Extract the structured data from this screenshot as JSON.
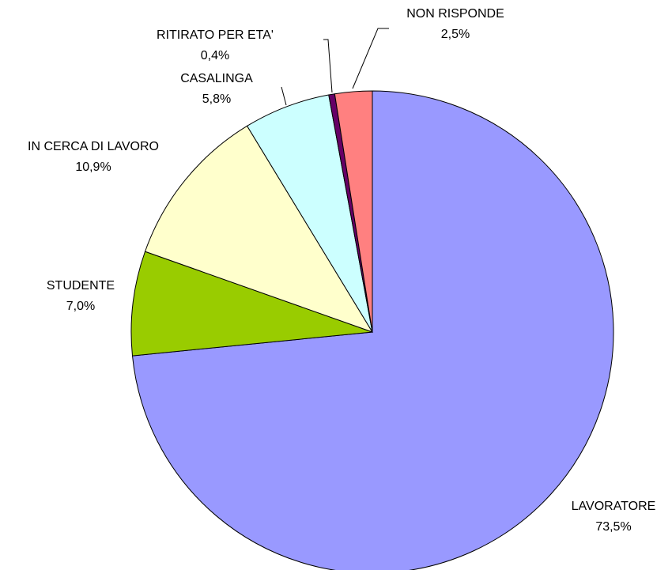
{
  "chart_data": {
    "type": "pie",
    "categories": [
      "LAVORATORE",
      "STUDENTE",
      "IN CERCA DI LAVORO",
      "CASALINGA",
      "RITIRATO PER ETA'",
      "NON RISPONDE"
    ],
    "values": [
      73.5,
      7.0,
      10.9,
      5.8,
      0.4,
      2.5
    ],
    "value_labels": [
      "73,5%",
      "7,0%",
      "10,9%",
      "5,8%",
      "0,4%",
      "2,5%"
    ],
    "colors": [
      "#9999ff",
      "#99cc00",
      "#ffffcc",
      "#ccffff",
      "#660066",
      "#ff8080"
    ]
  }
}
